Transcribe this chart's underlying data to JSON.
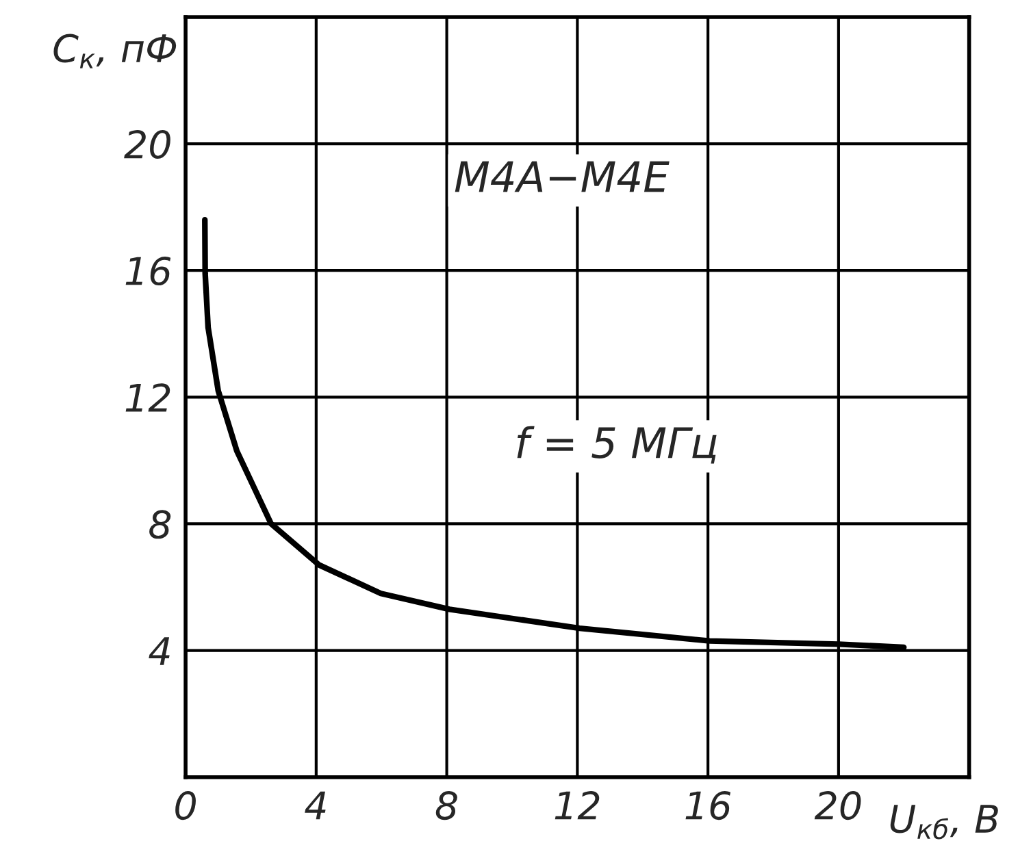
{
  "chart_data": {
    "type": "line",
    "xlabel": "U$_{кб}$, В",
    "ylabel": "C$_{к}$, пФ",
    "x": [
      0.59,
      0.6,
      0.69,
      1.0,
      1.57,
      2.62,
      4.09,
      5.98,
      8.08,
      12.07,
      16.05,
      20.0,
      22.0
    ],
    "series": [
      {
        "color": "#000000",
        "values": [
          17.6,
          15.9,
          14.2,
          12.2,
          10.3,
          8.0,
          6.7,
          5.8,
          5.3,
          4.7,
          4.3,
          4.2,
          4.1
        ]
      }
    ],
    "xlim": [
      0,
      24
    ],
    "ylim": [
      0,
      24
    ],
    "xticks": [
      0,
      4,
      8,
      12,
      16,
      20,
      {
        "value": 24,
        "label": null
      }
    ],
    "yticks": [
      {
        "value": 0,
        "label": null
      },
      4,
      8,
      12,
      16,
      20,
      {
        "value": 24,
        "label": null
      }
    ],
    "grid": true,
    "marker": "none",
    "line_style": "solid",
    "annotations": [
      "М4А−М4Е",
      "f = 5 МГц"
    ]
  }
}
